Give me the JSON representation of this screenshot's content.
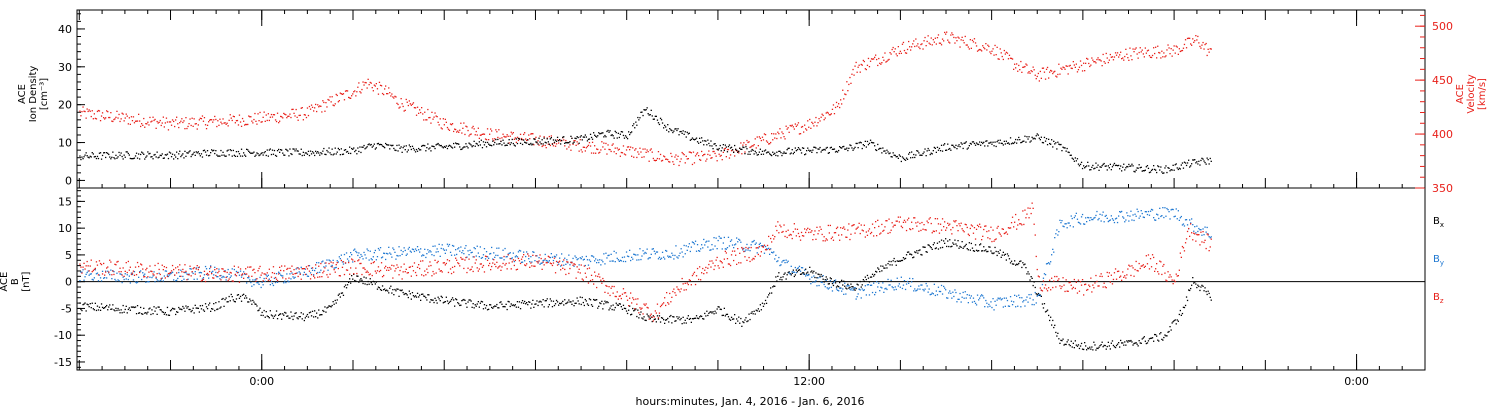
{
  "chart_data": [
    {
      "type": "scatter",
      "panel": "top",
      "left_axis": {
        "label_lines": [
          "ACE",
          "Ion Density",
          "[cm⁻³]"
        ],
        "ylim": [
          -2,
          45
        ],
        "ticks": [
          0,
          10,
          20,
          30,
          40
        ],
        "color": "#000000"
      },
      "right_axis": {
        "label_lines": [
          "ACE",
          "Velocity",
          "[km/s]"
        ],
        "ylim": [
          350,
          515
        ],
        "ticks": [
          350,
          400,
          450,
          500
        ],
        "color": "#e8201a"
      },
      "series": [
        {
          "name": "Ion Density",
          "axis": "left",
          "color": "#000000",
          "anchors": [
            [
              -4.0,
              6.5
            ],
            [
              -3.0,
              6.8
            ],
            [
              -2.0,
              6.8
            ],
            [
              -1.0,
              7.5
            ],
            [
              0.0,
              7.5
            ],
            [
              1.0,
              7.5
            ],
            [
              2.0,
              8.0
            ],
            [
              2.5,
              9.5
            ],
            [
              3.0,
              8.5
            ],
            [
              4.0,
              9.0
            ],
            [
              5.0,
              10.0
            ],
            [
              6.0,
              10.5
            ],
            [
              7.0,
              11.0
            ],
            [
              7.5,
              12.5
            ],
            [
              8.0,
              12.0
            ],
            [
              8.4,
              19.0
            ],
            [
              8.9,
              14.0
            ],
            [
              9.5,
              11.0
            ],
            [
              10.0,
              9.0
            ],
            [
              11.0,
              7.5
            ],
            [
              12.0,
              8.0
            ],
            [
              12.8,
              8.5
            ],
            [
              13.3,
              10.0
            ],
            [
              14.0,
              6.0
            ],
            [
              15.0,
              9.0
            ],
            [
              16.0,
              10.0
            ],
            [
              17.0,
              11.5
            ],
            [
              17.5,
              9.0
            ],
            [
              18.0,
              4.0
            ],
            [
              19.0,
              3.5
            ],
            [
              19.8,
              3.0
            ],
            [
              20.3,
              4.5
            ],
            [
              20.8,
              5.5
            ]
          ],
          "noise": 1.0
        },
        {
          "name": "Velocity",
          "axis": "right",
          "color": "#e8201a",
          "anchors": [
            [
              -4.0,
              420
            ],
            [
              -3.0,
              415
            ],
            [
              -2.0,
              410
            ],
            [
              -1.0,
              412
            ],
            [
              0.0,
              415
            ],
            [
              1.0,
              420
            ],
            [
              1.5,
              430
            ],
            [
              2.0,
              440
            ],
            [
              2.3,
              448
            ],
            [
              2.7,
              440
            ],
            [
              3.0,
              430
            ],
            [
              4.0,
              410
            ],
            [
              5.0,
              400
            ],
            [
              6.0,
              395
            ],
            [
              7.0,
              390
            ],
            [
              8.0,
              385
            ],
            [
              9.0,
              377
            ],
            [
              10.0,
              380
            ],
            [
              11.0,
              395
            ],
            [
              12.0,
              410
            ],
            [
              12.6,
              425
            ],
            [
              13.0,
              462
            ],
            [
              13.5,
              470
            ],
            [
              14.0,
              480
            ],
            [
              15.0,
              490
            ],
            [
              16.0,
              480
            ],
            [
              16.5,
              465
            ],
            [
              17.0,
              455
            ],
            [
              17.5,
              460
            ],
            [
              18.0,
              465
            ],
            [
              19.0,
              475
            ],
            [
              20.0,
              478
            ],
            [
              20.5,
              488
            ],
            [
              20.8,
              475
            ]
          ],
          "noise": 6.0
        }
      ]
    },
    {
      "type": "scatter",
      "panel": "bottom",
      "left_axis": {
        "label_lines": [
          "ACE",
          "B",
          "[nT]"
        ],
        "ylim": [
          -16.5,
          17.5
        ],
        "ticks": [
          -15,
          -10,
          -5,
          0,
          5,
          10,
          15
        ],
        "color": "#000000"
      },
      "zero_line": true,
      "legend": {
        "placement": "right",
        "entries": [
          {
            "text": "B",
            "sub": "x",
            "color": "#000000"
          },
          {
            "text": "B",
            "sub": "y",
            "color": "#1f78d1"
          },
          {
            "text": "B",
            "sub": "z",
            "color": "#e8201a"
          }
        ]
      },
      "series": [
        {
          "name": "Bx",
          "color": "#000000",
          "anchors": [
            [
              -4.0,
              -4.5
            ],
            [
              -3.0,
              -5.0
            ],
            [
              -2.0,
              -5.5
            ],
            [
              -1.0,
              -4.5
            ],
            [
              -0.7,
              -3.0
            ],
            [
              -0.3,
              -3.0
            ],
            [
              0.0,
              -6.0
            ],
            [
              1.0,
              -6.5
            ],
            [
              1.5,
              -5.0
            ],
            [
              2.0,
              1.0
            ],
            [
              3.0,
              -2.0
            ],
            [
              4.0,
              -3.5
            ],
            [
              5.0,
              -4.5
            ],
            [
              6.0,
              -4.0
            ],
            [
              7.0,
              -3.5
            ],
            [
              8.0,
              -5.0
            ],
            [
              8.5,
              -7.0
            ],
            [
              9.5,
              -7.0
            ],
            [
              10.0,
              -5.0
            ],
            [
              10.5,
              -7.5
            ],
            [
              11.0,
              -4.0
            ],
            [
              11.3,
              1.0
            ],
            [
              12.0,
              2.0
            ],
            [
              12.5,
              0.0
            ],
            [
              13.0,
              -1.0
            ],
            [
              13.5,
              2.0
            ],
            [
              14.0,
              4.5
            ],
            [
              15.0,
              7.5
            ],
            [
              16.0,
              6.0
            ],
            [
              16.7,
              3.0
            ],
            [
              17.0,
              -2.0
            ],
            [
              17.5,
              -11.0
            ],
            [
              18.0,
              -12.0
            ],
            [
              19.0,
              -11.5
            ],
            [
              19.8,
              -10.0
            ],
            [
              20.2,
              -5.0
            ],
            [
              20.4,
              0.5
            ],
            [
              20.8,
              -3.0
            ]
          ],
          "noise": 0.8
        },
        {
          "name": "By",
          "color": "#1f78d1",
          "anchors": [
            [
              -4.0,
              1.5
            ],
            [
              -3.0,
              1.0
            ],
            [
              -2.0,
              1.0
            ],
            [
              -1.0,
              2.0
            ],
            [
              0.0,
              0.0
            ],
            [
              1.0,
              2.0
            ],
            [
              2.0,
              5.0
            ],
            [
              3.0,
              5.5
            ],
            [
              4.0,
              6.0
            ],
            [
              5.0,
              5.5
            ],
            [
              6.0,
              4.5
            ],
            [
              7.0,
              4.0
            ],
            [
              8.0,
              5.0
            ],
            [
              9.0,
              5.5
            ],
            [
              10.0,
              7.5
            ],
            [
              11.0,
              6.5
            ],
            [
              11.5,
              3.0
            ],
            [
              12.0,
              1.0
            ],
            [
              13.0,
              -2.0
            ],
            [
              14.0,
              0.0
            ],
            [
              15.0,
              -2.0
            ],
            [
              16.0,
              -4.0
            ],
            [
              17.0,
              -3.0
            ],
            [
              17.5,
              11.0
            ],
            [
              18.0,
              12.0
            ],
            [
              19.0,
              12.5
            ],
            [
              20.0,
              13.0
            ],
            [
              20.3,
              11.0
            ],
            [
              20.8,
              9.0
            ]
          ],
          "noise": 1.2
        },
        {
          "name": "Bz",
          "color": "#e8201a",
          "anchors": [
            [
              -4.0,
              3.0
            ],
            [
              -3.0,
              2.5
            ],
            [
              -2.0,
              2.0
            ],
            [
              -1.0,
              1.5
            ],
            [
              0.0,
              1.5
            ],
            [
              1.0,
              2.0
            ],
            [
              2.0,
              3.0
            ],
            [
              3.0,
              2.0
            ],
            [
              4.0,
              3.0
            ],
            [
              5.0,
              3.5
            ],
            [
              6.0,
              4.0
            ],
            [
              7.0,
              2.0
            ],
            [
              8.0,
              -3.0
            ],
            [
              8.6,
              -6.0
            ],
            [
              9.0,
              -2.0
            ],
            [
              10.0,
              4.0
            ],
            [
              11.0,
              6.0
            ],
            [
              11.3,
              10.0
            ],
            [
              12.0,
              9.0
            ],
            [
              13.0,
              9.5
            ],
            [
              14.0,
              11.0
            ],
            [
              15.0,
              10.5
            ],
            [
              16.0,
              9.0
            ],
            [
              16.7,
              12.0
            ],
            [
              16.9,
              14.0
            ],
            [
              17.0,
              0.0
            ],
            [
              18.0,
              -1.0
            ],
            [
              19.0,
              2.0
            ],
            [
              19.5,
              4.0
            ],
            [
              20.0,
              0.0
            ],
            [
              20.3,
              10.0
            ],
            [
              20.8,
              7.0
            ]
          ],
          "noise": 1.5
        }
      ]
    }
  ],
  "x_axis": {
    "label": "hours:minutes, Jan.  4, 2016 - Jan.  6, 2016",
    "xlim_hours": [
      -4.05,
      25.5
    ],
    "data_end_hours": 20.8,
    "major_ticks": [
      {
        "hours": 0,
        "label": "0:00"
      },
      {
        "hours": 12,
        "label": "12:00"
      },
      {
        "hours": 24,
        "label": "0:00"
      }
    ],
    "medium_tick_step_hours": 2,
    "minor_tick_step_hours": 0.5
  }
}
